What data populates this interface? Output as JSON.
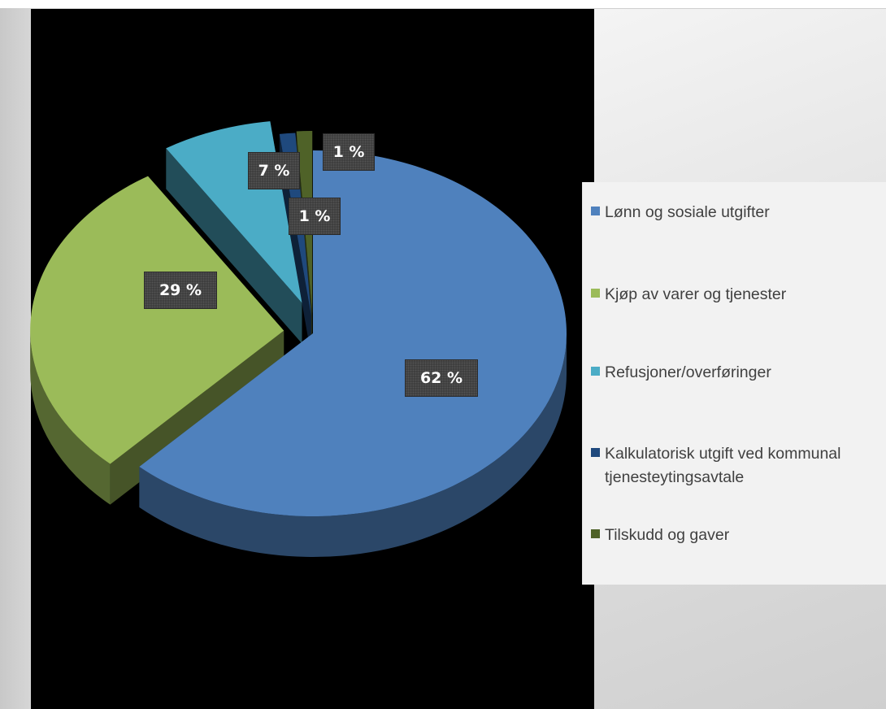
{
  "chart_data": {
    "type": "pie",
    "style": "3d-exploded",
    "title": "",
    "categories": [
      "Lønn og sosiale utgifter",
      "Kjøp av varer og tjenester",
      "Refusjoner/overføringer",
      "Kalkulatorisk utgift ved kommunal tjenesteytingsavtale",
      "Tilskudd og gaver"
    ],
    "values": [
      62,
      29,
      7,
      1,
      1
    ],
    "labels": [
      "62 %",
      "29 %",
      "7 %",
      "1 %",
      "1 %"
    ],
    "colors": [
      "#4f81bd",
      "#9bbb59",
      "#4bacc6",
      "#1f497d",
      "#4f6228"
    ],
    "legend": {
      "position": "right"
    },
    "background": "#000000"
  }
}
